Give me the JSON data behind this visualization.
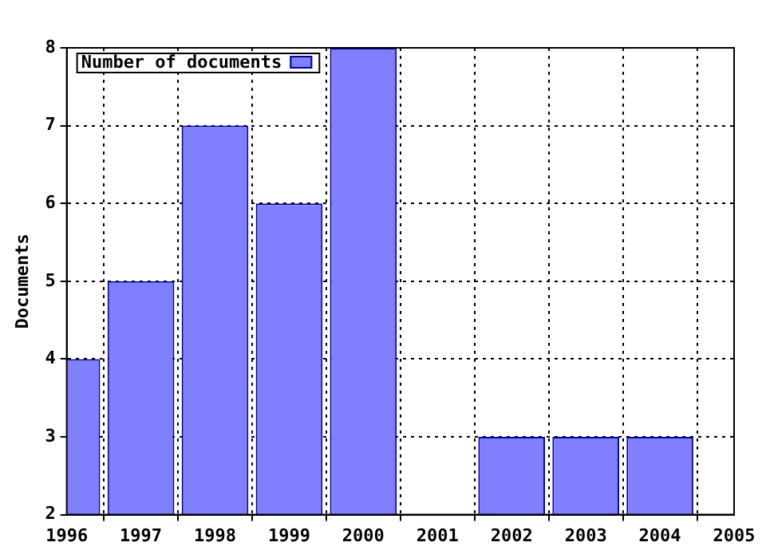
{
  "chart_data": {
    "type": "bar",
    "ylabel": "Documents",
    "x": [
      1996,
      1997,
      1998,
      1999,
      2000,
      2001,
      2002,
      2003,
      2004
    ],
    "series": [
      {
        "name": "Number of documents",
        "color": "#8080ff",
        "values": [
          4,
          5,
          7,
          6,
          8,
          null,
          3,
          3,
          3
        ]
      }
    ],
    "xlim": [
      1996,
      2005
    ],
    "xticks": [
      1996,
      1997,
      1998,
      1999,
      2000,
      2001,
      2002,
      2003,
      2004,
      2005
    ],
    "ylim": [
      2,
      8
    ],
    "yticks": [
      2,
      3,
      4,
      5,
      6,
      7,
      8
    ],
    "grid": true,
    "legend": "top left"
  }
}
